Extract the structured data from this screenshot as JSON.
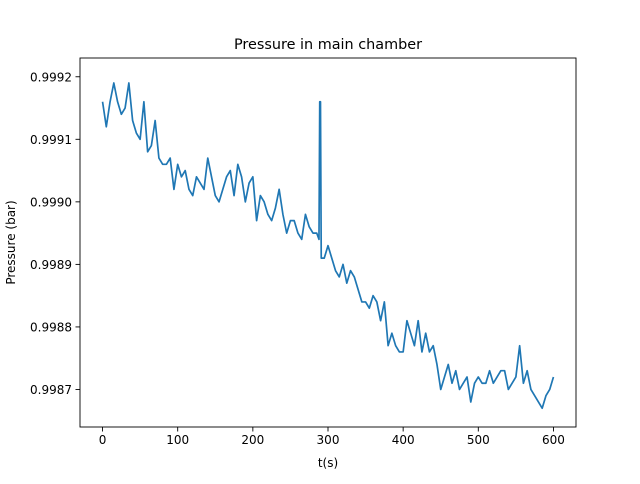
{
  "chart_data": {
    "type": "line",
    "title": "Pressure in main chamber",
    "xlabel": "t(s)",
    "ylabel": "Pressure (bar)",
    "xlim": [
      -30,
      630
    ],
    "ylim": [
      0.99864,
      0.99923
    ],
    "xticks": [
      0,
      100,
      200,
      300,
      400,
      500,
      600
    ],
    "xtick_labels": [
      "0",
      "100",
      "200",
      "300",
      "400",
      "500",
      "600"
    ],
    "yticks": [
      0.9987,
      0.9988,
      0.9989,
      0.999,
      0.9991,
      0.9992
    ],
    "ytick_labels": [
      "0.9987",
      "0.9988",
      "0.9989",
      "0.9990",
      "0.9991",
      "0.9992"
    ],
    "grid": false,
    "legend": "none",
    "series": [
      {
        "color": "#1f77b4",
        "x": [
          0,
          5,
          10,
          15,
          20,
          25,
          30,
          35,
          40,
          45,
          50,
          55,
          60,
          65,
          70,
          75,
          80,
          85,
          90,
          95,
          100,
          105,
          110,
          115,
          120,
          125,
          130,
          135,
          140,
          145,
          150,
          155,
          160,
          165,
          170,
          175,
          180,
          185,
          190,
          195,
          200,
          205,
          210,
          215,
          220,
          225,
          230,
          235,
          240,
          245,
          250,
          255,
          260,
          265,
          270,
          275,
          280,
          285,
          288,
          289,
          290,
          291,
          295,
          300,
          305,
          310,
          315,
          320,
          325,
          330,
          335,
          340,
          345,
          350,
          355,
          360,
          365,
          370,
          375,
          380,
          385,
          390,
          395,
          400,
          405,
          410,
          415,
          420,
          425,
          430,
          435,
          440,
          445,
          450,
          455,
          460,
          465,
          470,
          475,
          480,
          485,
          490,
          495,
          500,
          505,
          510,
          515,
          520,
          525,
          530,
          535,
          540,
          545,
          550,
          555,
          560,
          565,
          570,
          575,
          580,
          585,
          590,
          595,
          600
        ],
        "values": [
          0.99916,
          0.99912,
          0.99916,
          0.99919,
          0.99916,
          0.99914,
          0.99915,
          0.99919,
          0.99913,
          0.99911,
          0.9991,
          0.99916,
          0.99908,
          0.99909,
          0.99913,
          0.99907,
          0.99906,
          0.99906,
          0.99907,
          0.99902,
          0.99906,
          0.99904,
          0.99905,
          0.99902,
          0.99901,
          0.99904,
          0.99903,
          0.99902,
          0.99907,
          0.99904,
          0.99901,
          0.999,
          0.99902,
          0.99904,
          0.99905,
          0.99901,
          0.99906,
          0.99904,
          0.999,
          0.99903,
          0.99904,
          0.99897,
          0.99901,
          0.999,
          0.99898,
          0.99897,
          0.99899,
          0.99902,
          0.99898,
          0.99895,
          0.99897,
          0.99897,
          0.99895,
          0.99894,
          0.99898,
          0.99896,
          0.99895,
          0.99895,
          0.99894,
          0.99916,
          0.99916,
          0.99891,
          0.99891,
          0.99893,
          0.99891,
          0.99889,
          0.99888,
          0.9989,
          0.99887,
          0.99889,
          0.99888,
          0.99886,
          0.99884,
          0.99884,
          0.99883,
          0.99885,
          0.99884,
          0.99881,
          0.99884,
          0.99877,
          0.99879,
          0.99877,
          0.99876,
          0.99876,
          0.99881,
          0.99879,
          0.99877,
          0.99881,
          0.99876,
          0.99879,
          0.99876,
          0.99877,
          0.99874,
          0.9987,
          0.99872,
          0.99874,
          0.99871,
          0.99873,
          0.9987,
          0.99871,
          0.99872,
          0.99868,
          0.99871,
          0.99872,
          0.99871,
          0.99871,
          0.99873,
          0.99871,
          0.99872,
          0.99873,
          0.99873,
          0.9987,
          0.99871,
          0.99872,
          0.99877,
          0.99871,
          0.99873,
          0.9987,
          0.99869,
          0.99868,
          0.99867,
          0.99869,
          0.9987,
          0.99872
        ]
      }
    ]
  }
}
